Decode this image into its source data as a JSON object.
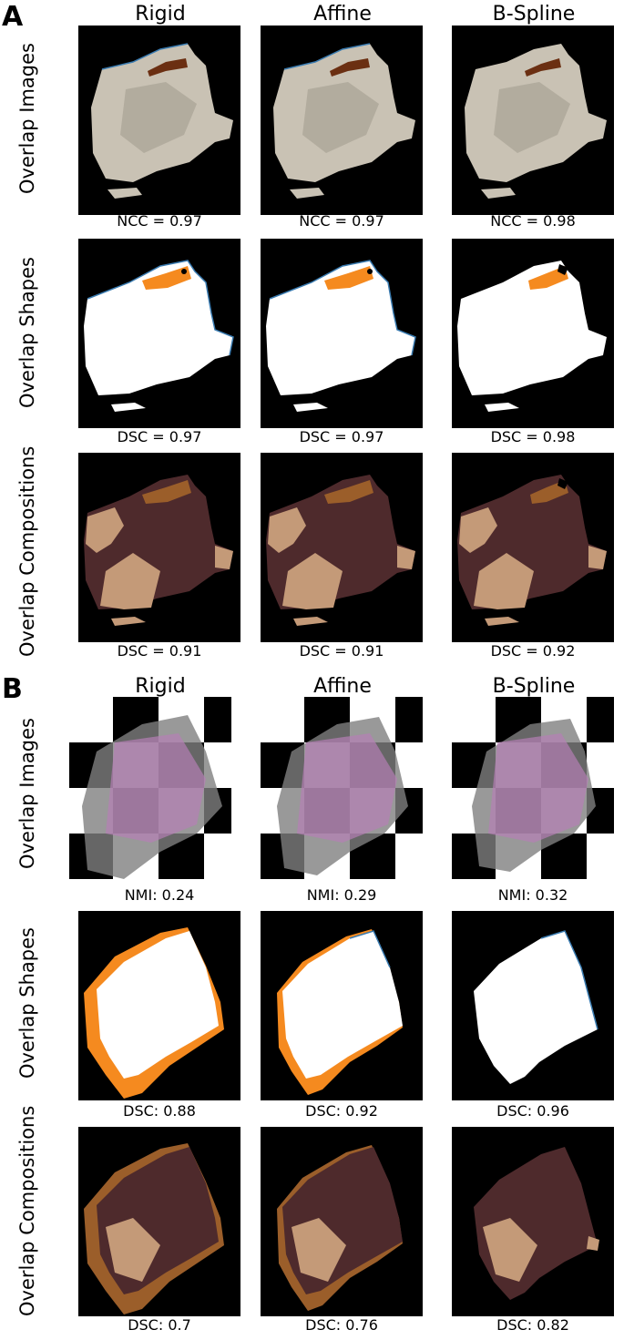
{
  "panels": [
    {
      "letter": "A",
      "columns": [
        "Rigid",
        "Affine",
        "B-Spline"
      ],
      "rows": [
        {
          "label": "Overlap Images",
          "metrics": [
            "NCC = 0.97",
            "NCC = 0.97",
            "NCC = 0.98"
          ]
        },
        {
          "label": "Overlap Shapes",
          "metrics": [
            "DSC = 0.97",
            "DSC = 0.97",
            "DSC = 0.98"
          ]
        },
        {
          "label": "Overlap Compositions",
          "metrics": [
            "DSC = 0.91",
            "DSC = 0.91",
            "DSC = 0.92"
          ]
        }
      ]
    },
    {
      "letter": "B",
      "columns": [
        "Rigid",
        "Affine",
        "B-Spline"
      ],
      "rows": [
        {
          "label": "Overlap Images",
          "metrics": [
            "NMI: 0.24",
            "NMI: 0.29",
            "NMI: 0.32"
          ]
        },
        {
          "label": "Overlap Shapes",
          "metrics": [
            "DSC: 0.88",
            "DSC: 0.92",
            "DSC: 0.96"
          ]
        },
        {
          "label": "Overlap Compositions",
          "metrics": [
            "DSC: 0.7",
            "DSC: 0.76",
            "DSC: 0.82"
          ]
        }
      ]
    }
  ],
  "colors": {
    "background": "#000000",
    "tissue_gray": "#c9c2b4",
    "shape_white": "#ffffff",
    "shape_orange": "#f58a1f",
    "shape_blue": "#3a7bb0",
    "comp_dark": "#4e2a2c",
    "comp_light": "#c49a78",
    "comp_brown": "#9b5e2a",
    "he_pink": "#b57fb5"
  }
}
